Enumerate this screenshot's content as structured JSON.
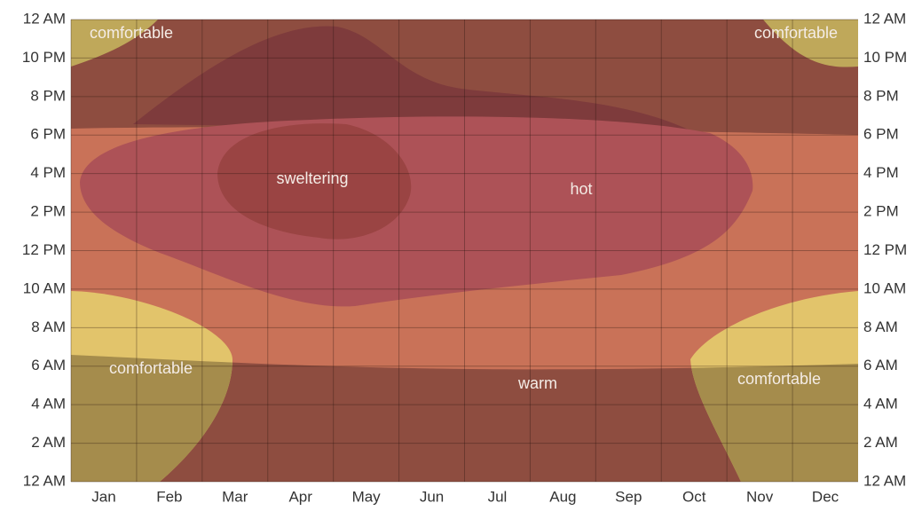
{
  "chart_data": {
    "type": "heatmap",
    "categories": [
      "Jan",
      "Feb",
      "Mar",
      "Apr",
      "May",
      "Jun",
      "Jul",
      "Aug",
      "Sep",
      "Oct",
      "Nov",
      "Dec"
    ],
    "ylim": [
      0,
      24
    ],
    "yticks": [
      {
        "value": 0,
        "label": "12 AM"
      },
      {
        "value": 2,
        "label": "2 AM"
      },
      {
        "value": 4,
        "label": "4 AM"
      },
      {
        "value": 6,
        "label": "6 AM"
      },
      {
        "value": 8,
        "label": "8 AM"
      },
      {
        "value": 10,
        "label": "10 AM"
      },
      {
        "value": 12,
        "label": "12 PM"
      },
      {
        "value": 14,
        "label": "2 PM"
      },
      {
        "value": 16,
        "label": "4 PM"
      },
      {
        "value": 18,
        "label": "6 PM"
      },
      {
        "value": 20,
        "label": "8 PM"
      },
      {
        "value": 22,
        "label": "10 PM"
      },
      {
        "value": 24,
        "label": "12 AM"
      }
    ],
    "grid": true,
    "annotations": [
      "comfortable",
      "comfortable",
      "sweltering",
      "hot",
      "comfortable",
      "warm",
      "comfortable"
    ]
  }
}
